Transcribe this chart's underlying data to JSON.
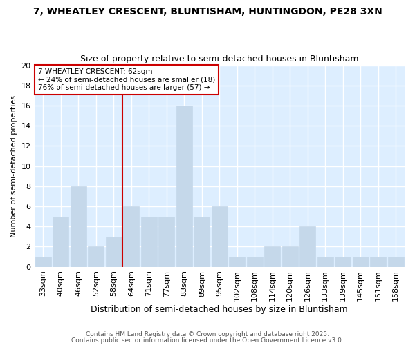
{
  "title1": "7, WHEATLEY CRESCENT, BLUNTISHAM, HUNTINGDON, PE28 3XN",
  "title2": "Size of property relative to semi-detached houses in Bluntisham",
  "xlabel": "Distribution of semi-detached houses by size in Bluntisham",
  "ylabel": "Number of semi-detached properties",
  "categories": [
    "33sqm",
    "40sqm",
    "46sqm",
    "52sqm",
    "58sqm",
    "64sqm",
    "71sqm",
    "77sqm",
    "83sqm",
    "89sqm",
    "95sqm",
    "102sqm",
    "108sqm",
    "114sqm",
    "120sqm",
    "126sqm",
    "133sqm",
    "139sqm",
    "145sqm",
    "151sqm",
    "158sqm"
  ],
  "values": [
    1,
    5,
    8,
    2,
    3,
    6,
    5,
    5,
    16,
    5,
    6,
    1,
    1,
    2,
    2,
    4,
    1,
    1,
    1,
    1,
    1
  ],
  "bar_color": "#c5d8ea",
  "bar_edge_color": "#c5d8ea",
  "property_line_x": 4.5,
  "property_sqm": 62,
  "property_label": "7 WHEATLEY CRESCENT: 62sqm",
  "smaller_pct": 24,
  "smaller_count": 18,
  "larger_pct": 76,
  "larger_count": 57,
  "ylim": [
    0,
    20
  ],
  "yticks": [
    0,
    2,
    4,
    6,
    8,
    10,
    12,
    14,
    16,
    18,
    20
  ],
  "fig_bg_color": "#ffffff",
  "plot_bg_color": "#ddeeff",
  "grid_color": "#ffffff",
  "annotation_box_edge": "#cc0000",
  "annotation_box_bg": "#ffffff",
  "property_line_color": "#cc0000",
  "footnote1": "Contains HM Land Registry data © Crown copyright and database right 2025.",
  "footnote2": "Contains public sector information licensed under the Open Government Licence v3.0.",
  "title1_fontsize": 10,
  "title2_fontsize": 9,
  "xlabel_fontsize": 9,
  "ylabel_fontsize": 8,
  "tick_fontsize": 8,
  "annot_fontsize": 7.5,
  "footnote_fontsize": 6.5
}
